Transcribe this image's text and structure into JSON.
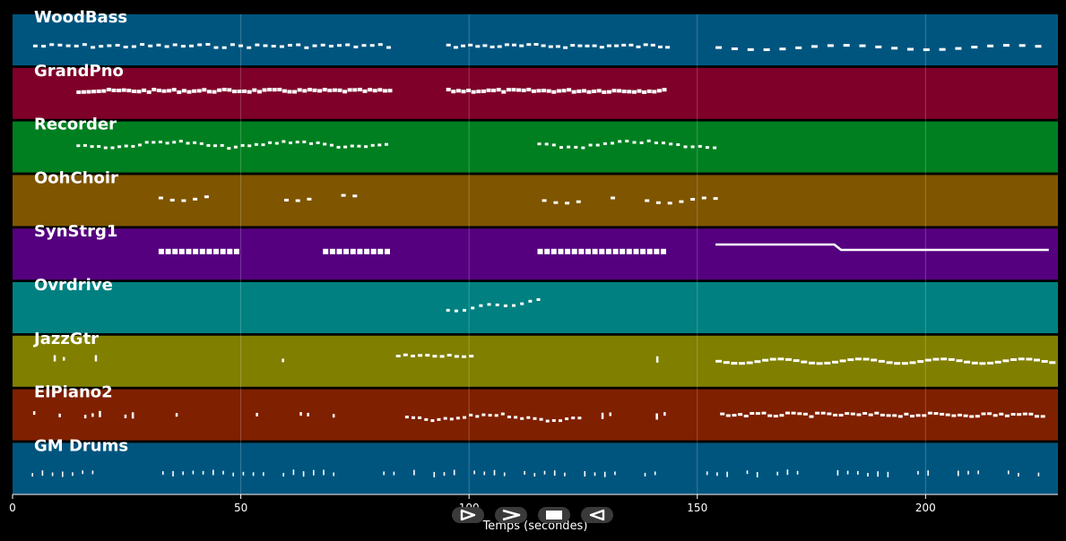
{
  "chart_data": {
    "type": "piano-roll",
    "xlabel": "Temps (secondes)",
    "xlim": [
      0,
      229
    ],
    "xticks": [
      0,
      50,
      100,
      150,
      200
    ],
    "grid": true,
    "tracks": [
      {
        "name": "WoodBass",
        "color": "#00557f",
        "phrases": [
          [
            4.5,
            83,
            "dash",
            0.62,
            1.8
          ],
          [
            95,
            143,
            "dash",
            0.62,
            1.6
          ],
          [
            154,
            226,
            "wave",
            0.65,
            3.5
          ]
        ]
      },
      {
        "name": "GrandPno",
        "color": "#7f0028",
        "phrases": [
          [
            14,
            83,
            "block",
            0.45,
            1.1
          ],
          [
            95,
            143,
            "block",
            0.45,
            1.1
          ]
        ]
      },
      {
        "name": "Recorder",
        "color": "#007f20",
        "phrases": [
          [
            14,
            82,
            "melody",
            0.45,
            1.5
          ],
          [
            115,
            154,
            "melody",
            0.45,
            1.6
          ]
        ]
      },
      {
        "name": "OohChoir",
        "color": "#7f5500",
        "phrases": [
          [
            32,
            82,
            "choir",
            0.45,
            2.5
          ],
          [
            116,
            154,
            "choir",
            0.5,
            2.5
          ]
        ]
      },
      {
        "name": "SynStrg1",
        "color": "#55007f",
        "phrases": [
          [
            32,
            50,
            "chord",
            0.45,
            1.5
          ],
          [
            68,
            82,
            "chord",
            0.45,
            1.5
          ],
          [
            115,
            143,
            "chord",
            0.45,
            1.5
          ],
          [
            154,
            227,
            "long",
            0.4,
            0
          ]
        ]
      },
      {
        "name": "Ovrdrive",
        "color": "#008080",
        "phrases": [
          [
            95,
            115,
            "rise",
            0.55,
            1.8
          ]
        ]
      },
      {
        "name": "JazzGtr",
        "color": "#807f00",
        "phrases": [
          [
            9,
            28,
            "sparse",
            0.45,
            2.0
          ],
          [
            49,
            64,
            "sparse",
            0.45,
            2.0
          ],
          [
            84,
            101,
            "dash",
            0.4,
            1.6
          ],
          [
            141,
            142,
            "sparse",
            0.5,
            2.0
          ],
          [
            154,
            228,
            "wave",
            0.5,
            1.7
          ]
        ]
      },
      {
        "name": "ElPiano2",
        "color": "#7f2000",
        "phrases": [
          [
            4.5,
            77,
            "sparse",
            0.5,
            1.6
          ],
          [
            86,
            125,
            "melody",
            0.55,
            1.4
          ],
          [
            129,
            143,
            "sparse",
            0.5,
            1.7
          ],
          [
            155,
            226,
            "dash",
            0.5,
            1.3
          ]
        ]
      },
      {
        "name": "GM Drums",
        "color": "#00557f",
        "phrases": [
          [
            2,
            143,
            "drum",
            0.6,
            2.2
          ],
          [
            152,
            226,
            "drum",
            0.6,
            2.2
          ]
        ]
      }
    ]
  },
  "controls": [
    {
      "name": "play-button",
      "icon": "play-icon"
    },
    {
      "name": "fast-forward-button",
      "icon": "fast-forward-icon"
    },
    {
      "name": "stop-button",
      "icon": "stop-icon"
    },
    {
      "name": "rewind-button",
      "icon": "rewind-icon"
    }
  ]
}
